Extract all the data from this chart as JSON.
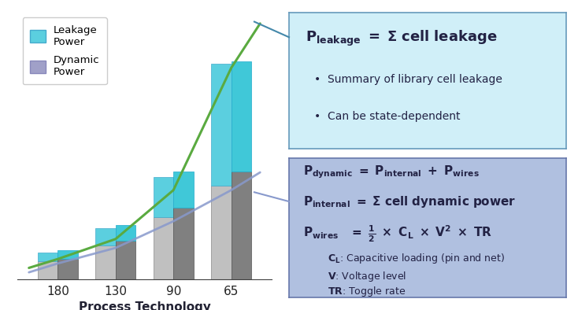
{
  "bg_color": "#ffffff",
  "chart_bg": "#ffffff",
  "categories": [
    "180",
    "130",
    "90",
    "65"
  ],
  "dynamic_values": [
    0.8,
    1.5,
    2.8,
    4.2
  ],
  "leakage_values": [
    0.4,
    0.8,
    1.8,
    5.5
  ],
  "bar_width": 0.35,
  "dynamic_color": "#a0a0c8",
  "leakage_color": "#5bcfdf",
  "bar_gray_dark": "#808080",
  "bar_gray_light": "#c0c0c0",
  "leakage_curve_color": "#5aaa40",
  "dynamic_curve_color": "#8899cc",
  "xlabel": "Process Technology\n(nm)",
  "legend_leakage": "Leakage\nPower",
  "legend_dynamic": "Dynamic\nPower",
  "box1_bg": "#d0eff8",
  "box1_border": "#6699bb",
  "box2_bg": "#b0c0e0",
  "box2_border": "#6677aa",
  "axis_color": "#404040",
  "grid_color": "#cccccc",
  "dyn2_scale": 1.15,
  "leak2_scale": 0.9,
  "curve_x": [
    -0.5,
    0,
    1,
    2,
    3,
    3.5
  ],
  "curve_y_leak": [
    0.5,
    0.9,
    1.8,
    4.0,
    9.5,
    11.5
  ],
  "curve_y_dyn": [
    0.3,
    0.7,
    1.4,
    2.6,
    4.0,
    4.8
  ],
  "ylim": [
    0,
    12
  ],
  "xlim_lo": -0.7,
  "xlim_hi": 3.7
}
